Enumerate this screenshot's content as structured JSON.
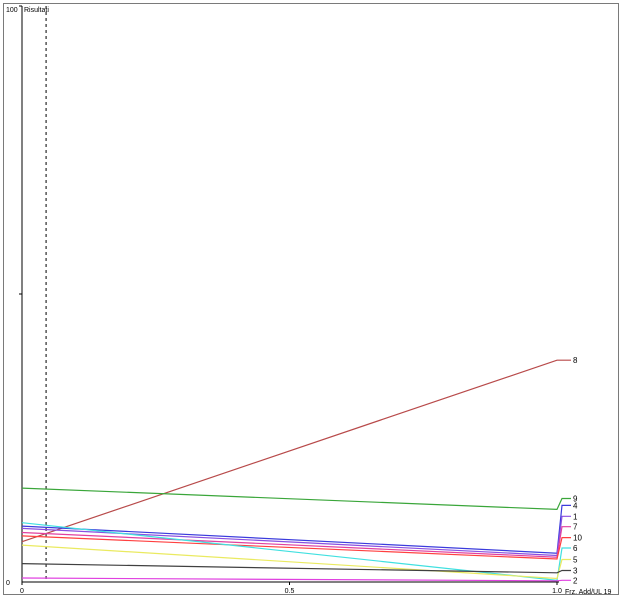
{
  "chart_data": {
    "type": "line",
    "title": "",
    "ylabel": "Risultati",
    "xlabel": "Frz. Add/UL 19",
    "xlim": [
      0,
      1.0
    ],
    "ylim": [
      0,
      100
    ],
    "x_ticks": [
      "0",
      "0.5",
      "1.0"
    ],
    "y_ticks": [
      "0",
      "100"
    ],
    "reference_line_x": 0.045,
    "series": [
      {
        "name": "8",
        "color": "#b84a4a",
        "start": 7.0,
        "end": 38.5,
        "final": 38.5
      },
      {
        "name": "9",
        "color": "#3aa63a",
        "start": 16.3,
        "end": 12.6,
        "final": 14.5
      },
      {
        "name": "4",
        "color": "#3b3bdc",
        "start": 9.7,
        "end": 5.0,
        "final": 13.3
      },
      {
        "name": "1",
        "color": "#8a4fe0",
        "start": 9.3,
        "end": 4.6,
        "final": 11.4
      },
      {
        "name": "7",
        "color": "#e040a0",
        "start": 8.6,
        "end": 4.3,
        "final": 9.6
      },
      {
        "name": "10",
        "color": "#ff4040",
        "start": 8.0,
        "end": 4.0,
        "final": 7.7
      },
      {
        "name": "6",
        "color": "#40e0e0",
        "start": 10.3,
        "end": 0.3,
        "final": 5.9
      },
      {
        "name": "5",
        "color": "#eaea60",
        "start": 6.4,
        "end": 0.6,
        "final": 3.9
      },
      {
        "name": "3",
        "color": "#404040",
        "start": 3.2,
        "end": 1.6,
        "final": 2.0
      },
      {
        "name": "2",
        "color": "#e040e0",
        "start": 0.7,
        "end": 0.2,
        "final": 0.3
      }
    ]
  }
}
